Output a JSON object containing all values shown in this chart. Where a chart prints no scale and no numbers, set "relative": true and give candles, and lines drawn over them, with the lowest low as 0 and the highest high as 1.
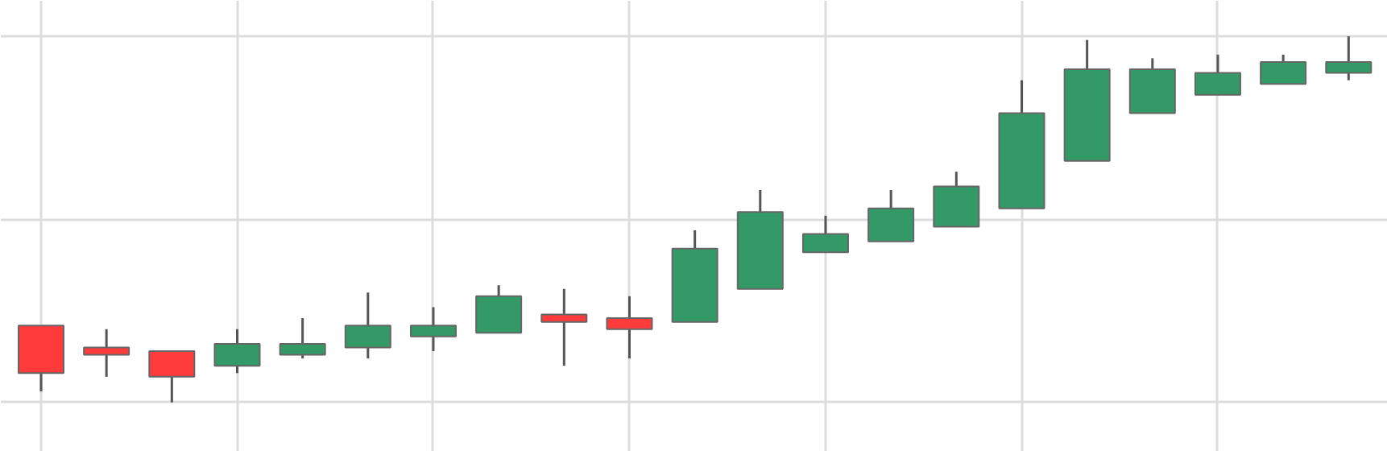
{
  "chart_data": {
    "type": "candlestick",
    "relative": true,
    "grid": true,
    "categories": [
      null,
      null,
      null,
      null,
      null,
      null,
      null,
      null,
      null,
      null,
      null,
      null,
      null,
      null,
      null,
      null,
      null,
      null,
      null,
      null,
      null
    ],
    "colors": [
      "#ff3b3b",
      "#ff3b3b",
      "#ff3b3b",
      "#339966",
      "#339966",
      "#339966",
      "#339966",
      "#339966",
      "#ff3b3b",
      "#ff3b3b",
      "#339966",
      "#339966",
      "#339966",
      "#339966",
      "#339966",
      "#339966",
      "#339966",
      "#339966",
      "#339966",
      "#339966",
      "#339966"
    ],
    "ohlc": [
      [
        0.21,
        0.21,
        0.03,
        0.08
      ],
      [
        0.15,
        0.2,
        0.07,
        0.13
      ],
      [
        0.14,
        0.14,
        0,
        0.07
      ],
      [
        0.1,
        0.2,
        0.08,
        0.16
      ],
      [
        0.13,
        0.23,
        0.12,
        0.16
      ],
      [
        0.15,
        0.3,
        0.12,
        0.21
      ],
      [
        0.18,
        0.26,
        0.14,
        0.21
      ],
      [
        0.19,
        0.32,
        0.19,
        0.29
      ],
      [
        0.24,
        0.31,
        0.1,
        0.22
      ],
      [
        0.23,
        0.29,
        0.12,
        0.2
      ],
      [
        0.22,
        0.47,
        0.22,
        0.42
      ],
      [
        0.31,
        0.58,
        0.31,
        0.52
      ],
      [
        0.41,
        0.51,
        0.41,
        0.46
      ],
      [
        0.44,
        0.58,
        0.44,
        0.53
      ],
      [
        0.48,
        0.63,
        0.48,
        0.59
      ],
      [
        0.53,
        0.88,
        0.53,
        0.79
      ],
      [
        0.66,
        0.99,
        0.66,
        0.91
      ],
      [
        0.79,
        0.94,
        0.79,
        0.91
      ],
      [
        0.84,
        0.95,
        0.84,
        0.9
      ],
      [
        0.87,
        0.95,
        0.87,
        0.93
      ],
      [
        0.9,
        1,
        0.88,
        0.93
      ]
    ]
  }
}
